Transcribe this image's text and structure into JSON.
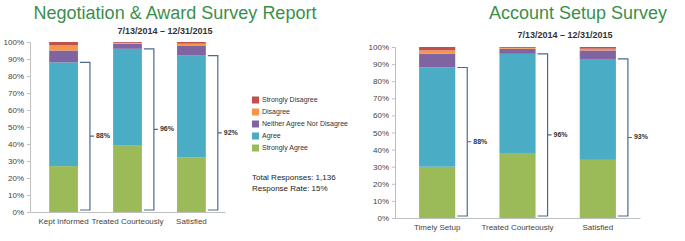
{
  "chart_data": [
    {
      "type": "bar",
      "stacked": true,
      "title": "Negotiation & Award Survey Report",
      "subtitle": "7/13/2014 – 12/31/2015",
      "categories": [
        "Kept Informed",
        "Treated Courteously",
        "Satisfied"
      ],
      "series": [
        {
          "name": "Strongly Agree",
          "color": "#9bbb59",
          "values": [
            27,
            39,
            32
          ]
        },
        {
          "name": "Agree",
          "color": "#4bacc6",
          "values": [
            61,
            57,
            60
          ]
        },
        {
          "name": "Neither Agree Nor Disagree",
          "color": "#8064a2",
          "values": [
            7,
            3,
            6
          ]
        },
        {
          "name": "Disagree",
          "color": "#f79646",
          "values": [
            3,
            0.5,
            1
          ]
        },
        {
          "name": "Strongly Disagree",
          "color": "#c0504d",
          "values": [
            2,
            0.5,
            1
          ]
        }
      ],
      "ylim": [
        0,
        100
      ],
      "yticks": [
        {
          "value": 0,
          "label": "0%"
        },
        {
          "value": 10,
          "label": "10%"
        },
        {
          "value": 20,
          "label": "20%"
        },
        {
          "value": 30,
          "label": "30%"
        },
        {
          "value": 40,
          "label": "40%"
        },
        {
          "value": 50,
          "label": "50%"
        },
        {
          "value": 60,
          "label": "60%"
        },
        {
          "value": 70,
          "label": "70%"
        },
        {
          "value": 80,
          "label": "80%"
        },
        {
          "value": 90,
          "label": "90%"
        },
        {
          "value": 100,
          "label": "100%"
        }
      ],
      "grid": false,
      "legend": "right",
      "brackets": [
        {
          "value": 88,
          "label": "88%"
        },
        {
          "value": 96,
          "label": "96%"
        },
        {
          "value": 92,
          "label": "92%"
        }
      ],
      "notes": [
        "Total Responses: 1,136",
        "Response Rate: 15%"
      ]
    },
    {
      "type": "bar",
      "stacked": true,
      "title": "Account Setup Survey",
      "subtitle": "7/13/2014 – 12/31/2015",
      "categories": [
        "Timely Setup",
        "Treated Courteously",
        "Satisfied"
      ],
      "series": [
        {
          "name": "Strongly Agree",
          "color": "#9bbb59",
          "values": [
            30,
            38,
            34
          ]
        },
        {
          "name": "Agree",
          "color": "#4bacc6",
          "values": [
            58,
            58,
            59
          ]
        },
        {
          "name": "Neither Agree Nor Disagree",
          "color": "#8064a2",
          "values": [
            8,
            3,
            5
          ]
        },
        {
          "name": "Disagree",
          "color": "#f79646",
          "values": [
            2,
            0.5,
            1
          ]
        },
        {
          "name": "Strongly Disagree",
          "color": "#c0504d",
          "values": [
            2,
            0.5,
            1
          ]
        }
      ],
      "ylim": [
        0,
        100
      ],
      "yticks": [
        {
          "value": 0,
          "label": "0%"
        },
        {
          "value": 10,
          "label": "10%"
        },
        {
          "value": 20,
          "label": "20%"
        },
        {
          "value": 30,
          "label": "30%"
        },
        {
          "value": 40,
          "label": "40%"
        },
        {
          "value": 50,
          "label": "50%"
        },
        {
          "value": 60,
          "label": "60%"
        },
        {
          "value": 70,
          "label": "70%"
        },
        {
          "value": 80,
          "label": "80%"
        },
        {
          "value": 90,
          "label": "90%"
        },
        {
          "value": 100,
          "label": "100%"
        }
      ],
      "grid": false,
      "brackets": [
        {
          "value": 88,
          "label": "88%"
        },
        {
          "value": 96,
          "label": "96%"
        },
        {
          "value": 93,
          "label": "93%"
        }
      ]
    }
  ]
}
